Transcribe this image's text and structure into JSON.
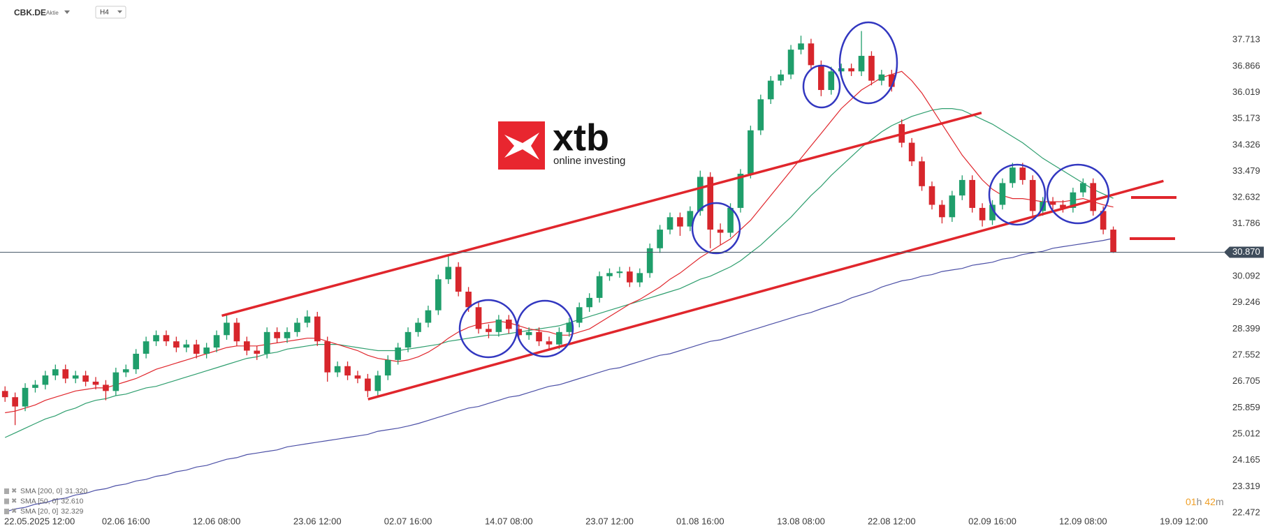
{
  "header": {
    "symbol": "CBK.DE",
    "kind": "Aktie",
    "timeframe": "H4"
  },
  "logo": {
    "name": "xtb",
    "tagline": "online investing"
  },
  "timer": {
    "hours": "01",
    "hours_unit": "h",
    "minutes": "42",
    "minutes_unit": "m"
  },
  "chart_data": {
    "type": "candlestick",
    "up_color": "#1f9e6b",
    "down_color": "#d7262c",
    "categories": [
      "22.05.2025 12:00",
      null,
      null,
      null,
      null,
      null,
      null,
      null,
      null,
      null,
      null,
      null,
      "02.06 16:00",
      null,
      null,
      null,
      null,
      null,
      null,
      null,
      null,
      "12.06 08:00",
      null,
      null,
      null,
      null,
      null,
      null,
      null,
      null,
      null,
      "23.06 12:00",
      null,
      null,
      null,
      null,
      null,
      null,
      null,
      null,
      "02.07 16:00",
      null,
      null,
      null,
      null,
      null,
      null,
      null,
      null,
      null,
      "14.07 08:00",
      null,
      null,
      null,
      null,
      null,
      null,
      null,
      null,
      null,
      "23.07 12:00",
      null,
      null,
      null,
      null,
      null,
      null,
      null,
      null,
      "01.08 16:00",
      null,
      null,
      null,
      null,
      null,
      null,
      null,
      null,
      null,
      "13.08 08:00",
      null,
      null,
      null,
      null,
      null,
      null,
      null,
      null,
      "22.08 12:00",
      null,
      null,
      null,
      null,
      null,
      null,
      null,
      null,
      null,
      "02.09 16:00",
      null,
      null,
      null,
      null,
      null,
      null,
      null,
      null,
      "12.09 08:00",
      null,
      null,
      null,
      null,
      null,
      null,
      null,
      null,
      null,
      "19.09 12:00",
      null,
      null,
      null
    ],
    "open": [
      26.4,
      26.2,
      25.9,
      26.5,
      26.6,
      26.9,
      27.1,
      26.8,
      26.9,
      26.7,
      26.6,
      26.4,
      27.0,
      27.1,
      27.6,
      28.0,
      28.2,
      28.0,
      27.8,
      27.9,
      27.6,
      27.8,
      28.2,
      28.6,
      28.0,
      27.7,
      27.6,
      28.3,
      28.1,
      28.3,
      28.6,
      28.8,
      28.0,
      27.0,
      27.2,
      26.9,
      26.8,
      26.4,
      26.9,
      27.4,
      27.8,
      28.3,
      28.6,
      29.0,
      30.0,
      30.4,
      29.6,
      29.1,
      28.4,
      28.3,
      28.7,
      28.4,
      28.2,
      28.3,
      28.0,
      27.9,
      28.3,
      28.6,
      29.1,
      29.4,
      30.1,
      30.2,
      30.25,
      29.9,
      30.2,
      31.0,
      31.6,
      32.0,
      31.7,
      32.2,
      33.3,
      31.6,
      31.5,
      32.3,
      33.4,
      34.8,
      35.8,
      36.4,
      36.6,
      37.4,
      37.6,
      36.9,
      36.1,
      36.7,
      36.8,
      36.7,
      37.2,
      36.4,
      36.6,
      35.0,
      34.4,
      33.8,
      33.0,
      32.4,
      32.0,
      32.7,
      33.2,
      32.3,
      31.9,
      32.4,
      33.1,
      33.6,
      33.2,
      32.2,
      32.5,
      32.4,
      32.3,
      32.8,
      33.1,
      32.2,
      31.6,
      null,
      null,
      null,
      null,
      null,
      null,
      null,
      null,
      null,
      null
    ],
    "high": [
      26.55,
      26.35,
      26.65,
      26.75,
      27.05,
      27.25,
      27.25,
      27.05,
      27.05,
      26.85,
      26.75,
      27.15,
      27.25,
      27.75,
      28.15,
      28.35,
      28.35,
      28.15,
      28.05,
      28.05,
      27.95,
      28.35,
      28.9,
      28.75,
      28.15,
      27.85,
      28.45,
      28.45,
      28.45,
      28.75,
      29.0,
      28.95,
      28.15,
      27.35,
      27.35,
      27.05,
      26.95,
      27.05,
      27.55,
      27.95,
      28.45,
      28.75,
      29.15,
      30.15,
      30.8,
      30.55,
      29.75,
      29.25,
      28.55,
      28.85,
      28.85,
      28.55,
      28.45,
      28.45,
      28.15,
      28.45,
      28.75,
      29.25,
      29.55,
      30.25,
      30.35,
      30.4,
      30.4,
      30.35,
      31.15,
      31.75,
      32.15,
      32.15,
      32.35,
      33.5,
      33.45,
      31.8,
      32.45,
      33.55,
      34.95,
      35.95,
      36.55,
      36.75,
      37.55,
      37.85,
      37.75,
      37.05,
      36.85,
      36.95,
      36.95,
      38.0,
      37.35,
      36.75,
      36.75,
      35.15,
      34.55,
      33.95,
      33.15,
      32.55,
      32.85,
      33.35,
      33.35,
      32.45,
      32.55,
      33.25,
      33.75,
      33.75,
      33.35,
      32.65,
      32.65,
      32.55,
      32.95,
      33.25,
      33.25,
      32.35,
      31.7,
      null,
      null,
      null,
      null,
      null,
      null,
      null,
      null,
      null,
      null
    ],
    "low": [
      26.05,
      25.3,
      25.75,
      26.35,
      26.45,
      26.75,
      26.65,
      26.65,
      26.55,
      26.45,
      26.1,
      26.25,
      26.85,
      26.95,
      27.45,
      27.85,
      27.85,
      27.65,
      27.65,
      27.45,
      27.45,
      27.65,
      28.05,
      27.85,
      27.55,
      27.4,
      27.45,
      27.95,
      27.95,
      28.15,
      28.45,
      27.85,
      26.7,
      26.85,
      26.75,
      26.65,
      26.2,
      26.25,
      26.75,
      27.25,
      27.65,
      28.15,
      28.45,
      28.85,
      29.85,
      29.45,
      28.95,
      28.25,
      28.1,
      28.15,
      28.25,
      28.05,
      28.05,
      27.85,
      27.7,
      27.75,
      28.15,
      28.45,
      28.95,
      29.25,
      29.95,
      30.05,
      29.75,
      29.75,
      30.05,
      30.85,
      31.45,
      31.4,
      31.55,
      32.05,
      31.0,
      31.1,
      31.35,
      32.15,
      33.25,
      34.65,
      35.65,
      36.25,
      36.45,
      37.25,
      36.75,
      35.9,
      35.95,
      36.55,
      36.55,
      36.55,
      36.25,
      36.25,
      36.05,
      34.25,
      33.65,
      32.85,
      32.25,
      31.8,
      31.85,
      32.55,
      32.15,
      31.7,
      31.75,
      32.25,
      32.95,
      33.05,
      32.05,
      32.05,
      32.25,
      32.15,
      32.15,
      32.65,
      32.05,
      31.45,
      30.85,
      null,
      null,
      null,
      null,
      null,
      null,
      null,
      null,
      null,
      null
    ],
    "close": [
      26.2,
      25.9,
      26.5,
      26.6,
      26.9,
      27.1,
      26.8,
      26.9,
      26.7,
      26.6,
      26.4,
      27.0,
      27.1,
      27.6,
      28.0,
      28.2,
      28.0,
      27.8,
      27.9,
      27.6,
      27.8,
      28.2,
      28.6,
      28.0,
      27.7,
      27.6,
      28.3,
      28.1,
      28.3,
      28.6,
      28.8,
      28.0,
      27.0,
      27.2,
      26.9,
      26.8,
      26.4,
      26.9,
      27.4,
      27.8,
      28.3,
      28.6,
      29.0,
      30.0,
      30.4,
      29.6,
      29.1,
      28.4,
      28.3,
      28.7,
      28.4,
      28.2,
      28.3,
      28.0,
      27.9,
      28.3,
      28.6,
      29.1,
      29.4,
      30.1,
      30.2,
      30.25,
      29.9,
      30.2,
      31.0,
      31.6,
      32.0,
      31.7,
      32.2,
      33.3,
      31.6,
      31.5,
      32.3,
      33.4,
      34.8,
      35.8,
      36.4,
      36.6,
      37.4,
      37.6,
      36.9,
      36.1,
      36.7,
      36.8,
      36.7,
      37.2,
      36.4,
      36.6,
      36.2,
      34.4,
      33.8,
      33.0,
      32.4,
      32.0,
      32.7,
      33.2,
      32.3,
      31.9,
      32.4,
      33.1,
      33.6,
      33.2,
      32.2,
      32.5,
      32.4,
      32.3,
      32.8,
      33.1,
      32.2,
      31.6,
      30.87,
      null,
      null,
      null,
      null,
      null,
      null,
      null,
      null,
      null,
      null
    ],
    "series": [
      {
        "name": "SMA [200, 0]",
        "value_label": "31.320",
        "color": "#4b4fa6",
        "values": [
          22.5,
          22.6,
          22.65,
          22.75,
          22.8,
          22.9,
          22.95,
          23.05,
          23.1,
          23.2,
          23.25,
          23.35,
          23.4,
          23.5,
          23.55,
          23.65,
          23.7,
          23.8,
          23.85,
          23.95,
          24.0,
          24.1,
          24.2,
          24.25,
          24.35,
          24.4,
          24.45,
          24.5,
          24.6,
          24.65,
          24.7,
          24.75,
          24.8,
          24.85,
          24.9,
          24.95,
          25.0,
          25.1,
          25.15,
          25.2,
          25.27,
          25.35,
          25.45,
          25.55,
          25.65,
          25.75,
          25.85,
          25.9,
          26.0,
          26.1,
          26.2,
          26.25,
          26.35,
          26.45,
          26.55,
          26.6,
          26.7,
          26.8,
          26.9,
          27.0,
          27.1,
          27.15,
          27.25,
          27.35,
          27.45,
          27.55,
          27.6,
          27.7,
          27.8,
          27.9,
          28.0,
          28.05,
          28.15,
          28.25,
          28.35,
          28.45,
          28.55,
          28.65,
          28.75,
          28.85,
          28.93,
          29.05,
          29.15,
          29.25,
          29.4,
          29.5,
          29.6,
          29.75,
          29.85,
          29.95,
          30.0,
          30.1,
          30.15,
          30.25,
          30.3,
          30.35,
          30.45,
          30.5,
          30.55,
          30.65,
          30.7,
          30.8,
          30.85,
          30.9,
          31.0,
          31.05,
          31.1,
          31.15,
          31.2,
          31.25,
          31.32,
          null,
          null,
          null,
          null,
          null,
          null,
          null,
          null,
          null,
          null
        ]
      },
      {
        "name": "SMA [50, 0]",
        "value_label": "32.610",
        "color": "#2e9e6e",
        "values": [
          24.9,
          25.05,
          25.2,
          25.35,
          25.5,
          25.6,
          25.75,
          25.85,
          26.0,
          26.1,
          26.15,
          26.25,
          26.3,
          26.4,
          26.5,
          26.55,
          26.65,
          26.75,
          26.85,
          26.95,
          27.05,
          27.15,
          27.25,
          27.35,
          27.45,
          27.5,
          27.6,
          27.65,
          27.75,
          27.8,
          27.85,
          27.9,
          27.9,
          27.9,
          27.85,
          27.8,
          27.75,
          27.7,
          27.7,
          27.7,
          27.75,
          27.8,
          27.85,
          27.9,
          28.0,
          28.05,
          28.1,
          28.15,
          28.2,
          28.2,
          28.25,
          28.3,
          28.35,
          28.4,
          28.45,
          28.5,
          28.6,
          28.7,
          28.8,
          28.9,
          29.0,
          29.1,
          29.2,
          29.3,
          29.4,
          29.5,
          29.6,
          29.7,
          29.85,
          30.0,
          30.1,
          30.25,
          30.4,
          30.6,
          30.85,
          31.1,
          31.4,
          31.7,
          32.0,
          32.35,
          32.7,
          33.0,
          33.35,
          33.65,
          33.95,
          34.25,
          34.5,
          34.75,
          34.95,
          35.1,
          35.25,
          35.35,
          35.45,
          35.5,
          35.5,
          35.45,
          35.3,
          35.15,
          35.0,
          34.8,
          34.6,
          34.4,
          34.15,
          33.9,
          33.7,
          33.5,
          33.3,
          33.1,
          32.9,
          32.75,
          32.61,
          null,
          null,
          null,
          null,
          null,
          null,
          null,
          null,
          null,
          null
        ]
      },
      {
        "name": "SMA [20, 0]",
        "value_label": "32.329",
        "color": "#e0262c",
        "values": [
          25.7,
          25.75,
          25.85,
          25.95,
          26.1,
          26.2,
          26.3,
          26.4,
          26.45,
          26.5,
          26.5,
          26.6,
          26.7,
          26.8,
          26.95,
          27.1,
          27.2,
          27.3,
          27.4,
          27.5,
          27.6,
          27.7,
          27.8,
          27.85,
          27.85,
          27.85,
          27.9,
          27.95,
          28.0,
          28.05,
          28.1,
          28.1,
          28.0,
          27.9,
          27.8,
          27.7,
          27.55,
          27.45,
          27.4,
          27.35,
          27.4,
          27.5,
          27.65,
          27.85,
          28.1,
          28.3,
          28.45,
          28.55,
          28.6,
          28.65,
          28.6,
          28.5,
          28.4,
          28.35,
          28.3,
          28.2,
          28.2,
          28.3,
          28.4,
          28.6,
          28.8,
          29.0,
          29.2,
          29.35,
          29.55,
          29.75,
          30.0,
          30.2,
          30.45,
          30.7,
          30.9,
          31.1,
          31.3,
          31.6,
          31.9,
          32.3,
          32.7,
          33.1,
          33.5,
          33.9,
          34.3,
          34.7,
          35.1,
          35.5,
          35.8,
          36.1,
          36.3,
          36.5,
          36.6,
          36.7,
          36.4,
          36.0,
          35.5,
          35.0,
          34.5,
          34.0,
          33.6,
          33.2,
          32.9,
          32.7,
          32.6,
          32.6,
          32.55,
          32.5,
          32.5,
          32.5,
          32.55,
          32.6,
          32.5,
          32.4,
          32.329,
          null,
          null,
          null,
          null,
          null,
          null,
          null,
          null,
          null,
          null
        ]
      }
    ],
    "current_price": {
      "value": 30.87,
      "label": "30.870"
    },
    "ylim": [
      22.0,
      39.0
    ],
    "yticks": [
      37.713,
      36.866,
      36.019,
      35.173,
      34.326,
      33.479,
      32.632,
      31.786,
      30.092,
      29.246,
      28.399,
      27.552,
      26.705,
      25.859,
      25.012,
      24.165,
      23.319,
      22.472
    ],
    "grid": false
  }
}
